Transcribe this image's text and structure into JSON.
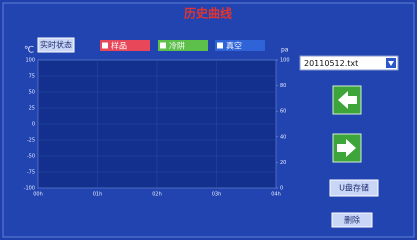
{
  "chart_data": {
    "type": "line",
    "title": "历史曲线",
    "y_label": "℃",
    "y2_label": "pa",
    "categories": [
      "00h",
      "01h",
      "02h",
      "03h",
      "04h"
    ],
    "series": [
      {
        "name": "样品",
        "color": "#e8475a",
        "values": [
          null,
          null,
          null,
          null,
          null
        ]
      },
      {
        "name": "冷阱",
        "color": "#5cc04a",
        "values": [
          null,
          null,
          null,
          null,
          null
        ]
      },
      {
        "name": "真空",
        "color": "#2f63d8",
        "values": [
          null,
          null,
          null,
          null,
          null
        ]
      }
    ],
    "ylim": [
      -100,
      100
    ],
    "yticks": [
      100,
      75,
      50,
      25,
      0,
      -25,
      -50,
      -75,
      -100
    ],
    "y2lim": [
      0,
      100
    ],
    "y2ticks": [
      100,
      80,
      60,
      40,
      20,
      0
    ],
    "grid": true
  },
  "buttons": {
    "realtime": "实时状态",
    "usb": "U盘存储",
    "delete": "删除"
  },
  "file_select": "20110512.txt"
}
